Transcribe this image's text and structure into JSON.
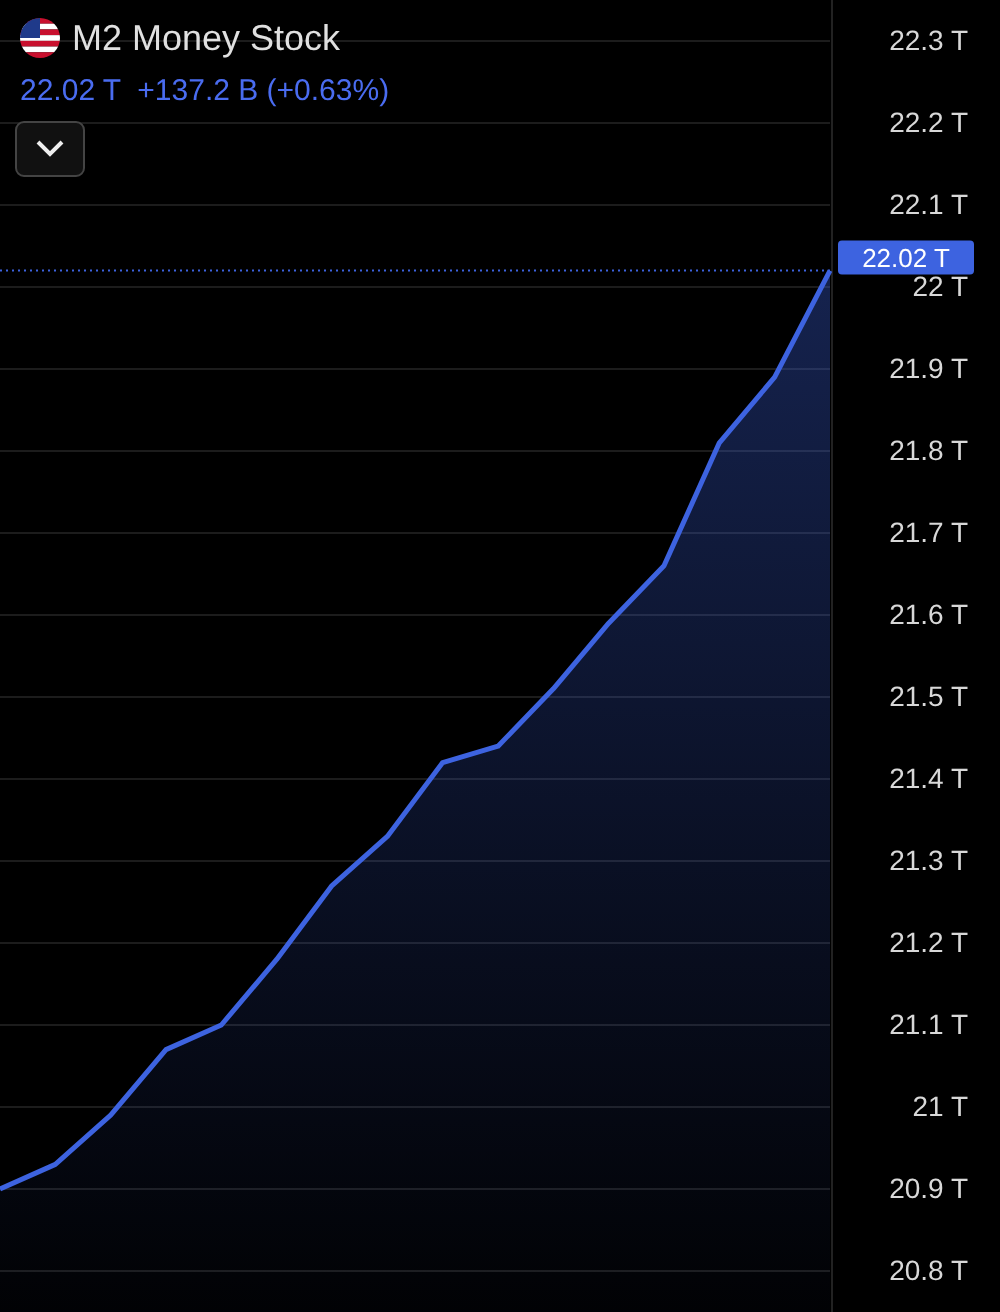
{
  "chart_data": {
    "type": "area",
    "title": "M2 Money Stock",
    "subtitle": "22.02 T  +137.2 B (+0.63%)",
    "categories": [
      null,
      null,
      null,
      null,
      null,
      null,
      null,
      null,
      null,
      null,
      null,
      null,
      null,
      null,
      null,
      null
    ],
    "series": [
      {
        "color": "#3d63e0",
        "values": [
          20.9,
          20.93,
          20.99,
          21.07,
          21.1,
          21.18,
          21.27,
          21.33,
          21.42,
          21.44,
          21.51,
          21.59,
          21.66,
          21.81,
          21.89,
          22.02
        ]
      }
    ],
    "ylim": [
      20.75,
      22.35
    ],
    "yticks": [
      {
        "value": 20.8,
        "label": "20.8 T"
      },
      {
        "value": 20.9,
        "label": "20.9 T"
      },
      {
        "value": 21,
        "label": "21 T"
      },
      {
        "value": 21.1,
        "label": "21.1 T"
      },
      {
        "value": 21.2,
        "label": "21.2 T"
      },
      {
        "value": 21.3,
        "label": "21.3 T"
      },
      {
        "value": 21.4,
        "label": "21.4 T"
      },
      {
        "value": 21.5,
        "label": "21.5 T"
      },
      {
        "value": 21.6,
        "label": "21.6 T"
      },
      {
        "value": 21.7,
        "label": "21.7 T"
      },
      {
        "value": 21.8,
        "label": "21.8 T"
      },
      {
        "value": 21.9,
        "label": "21.9 T"
      },
      {
        "value": 22,
        "label": "22 T"
      },
      {
        "value": 22.1,
        "label": "22.1 T"
      },
      {
        "value": 22.2,
        "label": "22.2 T"
      },
      {
        "value": 22.3,
        "label": "22.3 T"
      }
    ],
    "ref_lines": [
      {
        "axis": "y",
        "value": 22.02,
        "label": "22.02 T",
        "color": "#3d63e0",
        "line_style": "dotted"
      }
    ],
    "grid": "y",
    "tick_labels": "y"
  }
}
